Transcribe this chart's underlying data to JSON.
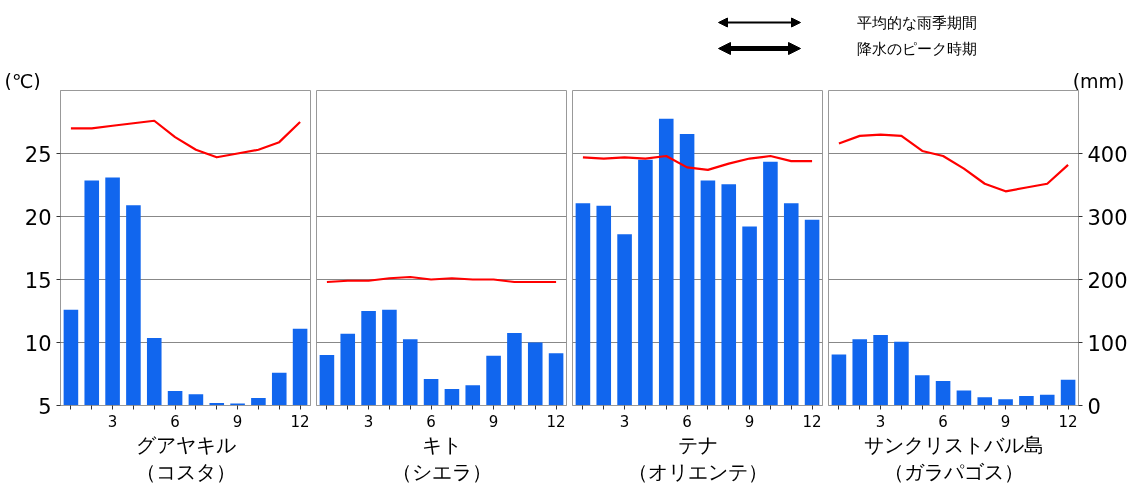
{
  "chart_data": [
    {
      "type": "bar",
      "title": "グアヤキル",
      "subtitle": "（コスタ）",
      "ylabel": "(℃)",
      "x": [
        1,
        2,
        3,
        4,
        5,
        6,
        7,
        8,
        9,
        10,
        11,
        12
      ],
      "xlim": [
        0.5,
        12.5
      ],
      "xticks": [
        {
          "value": 1,
          "label": null
        },
        {
          "value": 2,
          "label": null
        },
        3,
        {
          "value": 4,
          "label": null
        },
        {
          "value": 5,
          "label": null
        },
        6,
        {
          "value": 7,
          "label": null
        },
        {
          "value": 8,
          "label": null
        },
        9,
        {
          "value": 10,
          "label": null
        },
        {
          "value": 11,
          "label": null
        },
        12
      ],
      "ylim": [
        5,
        30
      ],
      "yticks": [
        5,
        10,
        15,
        20,
        25
      ],
      "y2lim": [
        0,
        500
      ],
      "grid": "y",
      "series": [
        {
          "axis": "y2",
          "color": "#1166ee",
          "values": [
            152,
            357,
            362,
            318,
            107,
            23,
            18,
            4,
            3,
            12,
            52,
            122
          ]
        },
        {
          "type": "line",
          "color": "#ff0000",
          "values": [
            27.0,
            27.0,
            27.2,
            27.4,
            27.6,
            26.3,
            25.3,
            24.7,
            25.0,
            25.3,
            25.9,
            27.5
          ]
        }
      ]
    },
    {
      "type": "bar",
      "title": "キト",
      "subtitle": "（シエラ）",
      "x": [
        1,
        2,
        3,
        4,
        5,
        6,
        7,
        8,
        9,
        10,
        11,
        12
      ],
      "xlim": [
        0.5,
        12.5
      ],
      "xticks": [
        {
          "value": 1,
          "label": null
        },
        {
          "value": 2,
          "label": null
        },
        3,
        {
          "value": 4,
          "label": null
        },
        {
          "value": 5,
          "label": null
        },
        6,
        {
          "value": 7,
          "label": null
        },
        {
          "value": 8,
          "label": null
        },
        9,
        {
          "value": 10,
          "label": null
        },
        {
          "value": 11,
          "label": null
        },
        12
      ],
      "ylim": [
        5,
        30
      ],
      "yticks": [
        5,
        10,
        15,
        20,
        25
      ],
      "y2lim": [
        0,
        500
      ],
      "grid": "y",
      "tick_labels": "x",
      "series": [
        {
          "axis": "y2",
          "color": "#1166ee",
          "values": [
            80,
            114,
            150,
            152,
            105,
            42,
            26,
            32,
            79,
            115,
            100,
            83
          ]
        },
        {
          "type": "line",
          "color": "#ff0000",
          "values": [
            14.8,
            14.9,
            14.9,
            15.1,
            15.2,
            15.0,
            15.1,
            15.0,
            15.0,
            14.8,
            14.8,
            14.8
          ]
        }
      ]
    },
    {
      "type": "bar",
      "title": "テナ",
      "subtitle": "（オリエンテ）",
      "x": [
        1,
        2,
        3,
        4,
        5,
        6,
        7,
        8,
        9,
        10,
        11,
        12
      ],
      "xlim": [
        0.5,
        12.5
      ],
      "xticks": [
        {
          "value": 1,
          "label": null
        },
        {
          "value": 2,
          "label": null
        },
        3,
        {
          "value": 4,
          "label": null
        },
        {
          "value": 5,
          "label": null
        },
        6,
        {
          "value": 7,
          "label": null
        },
        {
          "value": 8,
          "label": null
        },
        9,
        {
          "value": 10,
          "label": null
        },
        {
          "value": 11,
          "label": null
        },
        12
      ],
      "ylim": [
        5,
        30
      ],
      "yticks": [
        5,
        10,
        15,
        20,
        25
      ],
      "y2lim": [
        0,
        500
      ],
      "grid": "y",
      "tick_labels": "x",
      "series": [
        {
          "axis": "y2",
          "color": "#1166ee",
          "values": [
            321,
            317,
            272,
            390,
            455,
            431,
            357,
            351,
            284,
            387,
            321,
            295
          ]
        },
        {
          "type": "line",
          "color": "#ff0000",
          "values": [
            24.7,
            24.6,
            24.7,
            24.6,
            24.8,
            23.9,
            23.7,
            24.2,
            24.6,
            24.8,
            24.4,
            24.4
          ]
        }
      ]
    },
    {
      "type": "bar",
      "title": "サンクリストバル島",
      "subtitle": "（ガラパゴス）",
      "y2label": "(mm)",
      "x": [
        1,
        2,
        3,
        4,
        5,
        6,
        7,
        8,
        9,
        10,
        11,
        12
      ],
      "xlim": [
        0.5,
        12.5
      ],
      "xticks": [
        {
          "value": 1,
          "label": null
        },
        {
          "value": 2,
          "label": null
        },
        3,
        {
          "value": 4,
          "label": null
        },
        {
          "value": 5,
          "label": null
        },
        6,
        {
          "value": 7,
          "label": null
        },
        {
          "value": 8,
          "label": null
        },
        9,
        {
          "value": 10,
          "label": null
        },
        {
          "value": 11,
          "label": null
        },
        12
      ],
      "ylim": [
        5,
        30
      ],
      "y2lim": [
        0,
        500
      ],
      "y2ticks": [
        0,
        100,
        200,
        300,
        400
      ],
      "grid": "y",
      "annotations": [
        "平均的な雨季期間",
        "降水のピーク時期"
      ],
      "series": [
        {
          "axis": "y2",
          "color": "#1166ee",
          "values": [
            81,
            105,
            112,
            101,
            48,
            39,
            24,
            13,
            10,
            15,
            17,
            41
          ]
        },
        {
          "type": "line",
          "color": "#ff0000",
          "values": [
            25.8,
            26.4,
            26.5,
            26.4,
            25.2,
            24.8,
            23.8,
            22.6,
            22.0,
            22.3,
            22.6,
            24.1
          ]
        }
      ]
    }
  ]
}
